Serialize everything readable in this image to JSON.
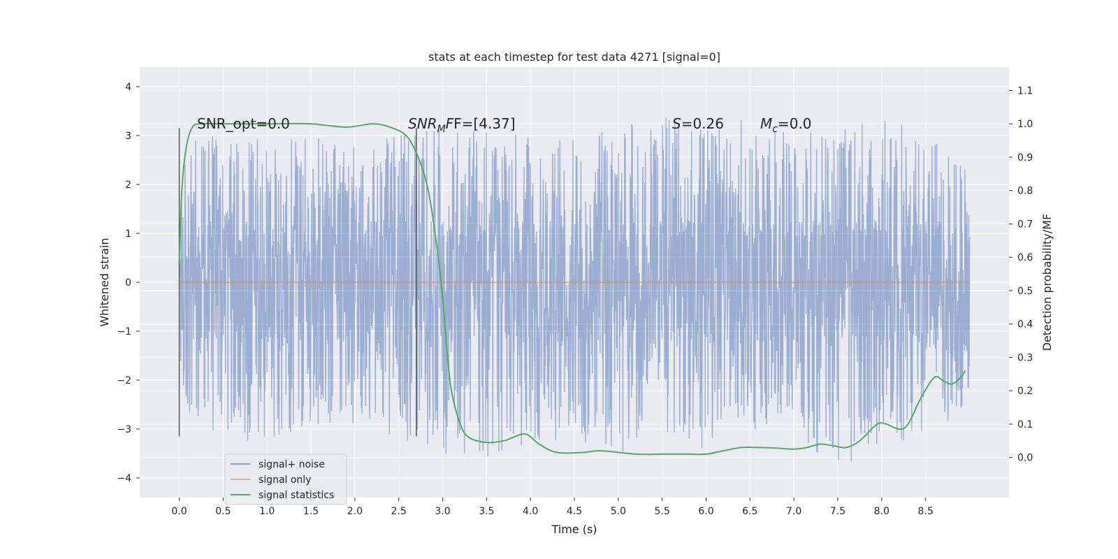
{
  "chart_data": {
    "type": "line",
    "title": "stats at each timestep for test data 4271 [signal=0]",
    "xlabel": "Time (s)",
    "ylabel": "Whitened strain",
    "y2label": "Detection probability/MF",
    "xlim": [
      -0.45,
      9.45
    ],
    "ylim": [
      -4.4,
      4.4
    ],
    "y2lim": [
      -0.12,
      1.17
    ],
    "x_ticks": [
      0.0,
      0.5,
      1.0,
      1.5,
      2.0,
      2.5,
      3.0,
      3.5,
      4.0,
      4.5,
      5.0,
      5.5,
      6.0,
      6.5,
      7.0,
      7.5,
      8.0,
      8.5
    ],
    "x_tick_labels": [
      "0.0",
      "0.5",
      "1.0",
      "1.5",
      "2.0",
      "2.5",
      "3.0",
      "3.5",
      "4.0",
      "4.5",
      "5.0",
      "5.5",
      "6.0",
      "6.5",
      "7.0",
      "7.5",
      "8.0",
      "8.5"
    ],
    "y_ticks": [
      -4,
      -3,
      -2,
      -1,
      0,
      1,
      2,
      3,
      4
    ],
    "y_tick_labels": [
      "−4",
      "−3",
      "−2",
      "−1",
      "0",
      "1",
      "2",
      "3",
      "4"
    ],
    "y2_ticks": [
      0.0,
      0.1,
      0.2,
      0.3,
      0.4,
      0.5,
      0.6,
      0.7,
      0.8,
      0.9,
      1.0,
      1.1
    ],
    "y2_tick_labels": [
      "0.0",
      "0.1",
      "0.2",
      "0.3",
      "0.4",
      "0.5",
      "0.6",
      "0.7",
      "0.8",
      "0.9",
      "1.0",
      "1.1"
    ],
    "grid": true,
    "legend_position": "lower-left",
    "series": [
      {
        "name": "signal+ noise",
        "color": "#4c72b0",
        "axis": "left",
        "description_x_range": [
          0.0,
          9.0
        ],
        "y_range_approx": [
          -4.0,
          4.0
        ],
        "envelope": {
          "x": [
            0.0,
            0.5,
            1.0,
            1.5,
            2.0,
            2.5,
            3.0,
            3.5,
            4.0,
            4.5,
            5.0,
            5.5,
            6.0,
            6.5,
            7.0,
            7.5,
            8.0,
            8.5,
            9.0
          ],
          "upper": [
            3.0,
            3.1,
            2.9,
            3.0,
            2.9,
            3.0,
            3.3,
            3.2,
            3.0,
            3.0,
            3.2,
            3.5,
            3.1,
            3.4,
            3.0,
            3.2,
            3.3,
            3.4,
            2.3
          ],
          "lower": [
            -2.5,
            -3.3,
            -3.3,
            -3.0,
            -3.0,
            -3.3,
            -3.5,
            -3.8,
            -3.3,
            -3.2,
            -3.5,
            -3.2,
            -3.5,
            -3.0,
            -3.2,
            -3.9,
            -3.3,
            -3.3,
            -2.4
          ]
        }
      },
      {
        "name": "signal only",
        "color": "#dd8452",
        "axis": "left",
        "x": [
          0.0,
          9.0
        ],
        "y": [
          0.0,
          0.0
        ]
      },
      {
        "name": "signal statistics",
        "color": "#55a868",
        "axis": "right",
        "x": [
          0.0,
          0.03,
          0.08,
          0.15,
          0.25,
          0.5,
          1.0,
          1.5,
          1.9,
          2.2,
          2.4,
          2.6,
          2.75,
          2.85,
          2.95,
          3.0,
          3.05,
          3.1,
          3.2,
          3.3,
          3.5,
          3.7,
          3.8,
          3.95,
          4.1,
          4.3,
          4.6,
          4.8,
          5.2,
          5.5,
          5.8,
          6.0,
          6.2,
          6.4,
          6.6,
          6.8,
          7.0,
          7.15,
          7.3,
          7.45,
          7.6,
          7.75,
          7.95,
          8.05,
          8.2,
          8.3,
          8.45,
          8.6,
          8.7,
          8.8,
          8.9,
          8.95
        ],
        "y": [
          0.58,
          0.8,
          0.93,
          0.99,
          1.0,
          1.0,
          1.0,
          1.0,
          0.99,
          1.0,
          0.99,
          0.96,
          0.88,
          0.78,
          0.6,
          0.48,
          0.32,
          0.2,
          0.1,
          0.06,
          0.045,
          0.05,
          0.06,
          0.07,
          0.04,
          0.015,
          0.015,
          0.02,
          0.01,
          0.01,
          0.01,
          0.01,
          0.02,
          0.03,
          0.03,
          0.028,
          0.025,
          0.03,
          0.04,
          0.035,
          0.03,
          0.05,
          0.1,
          0.1,
          0.085,
          0.1,
          0.18,
          0.24,
          0.23,
          0.22,
          0.24,
          0.26
        ]
      }
    ],
    "vertical_lines": [
      {
        "x": 0.0,
        "y_range": [
          -3.15,
          3.15
        ]
      },
      {
        "x": 2.7,
        "y_range": [
          -3.15,
          3.15
        ]
      }
    ],
    "annotations": [
      {
        "key": "snr_opt",
        "text": "SNR_opt=0.0",
        "x": 0.2
      },
      {
        "key": "snr_mf",
        "text": "SNR_MF=[4.37]",
        "x": 2.6
      },
      {
        "key": "s",
        "text": "S=0.26",
        "x": 5.6
      },
      {
        "key": "mc",
        "text": "M_c=0.0",
        "x": 6.6
      }
    ],
    "annotation_parts": {
      "snr_opt": {
        "text": "SNR_opt=0.0"
      },
      "snr_mf": {
        "main": "SNR",
        "sub": "M",
        "rest": "F=[4.37]"
      },
      "s": {
        "main": "S",
        "rest": "=0.26"
      },
      "mc": {
        "main": "M",
        "sub": "c",
        "rest": "=0.0"
      }
    }
  }
}
